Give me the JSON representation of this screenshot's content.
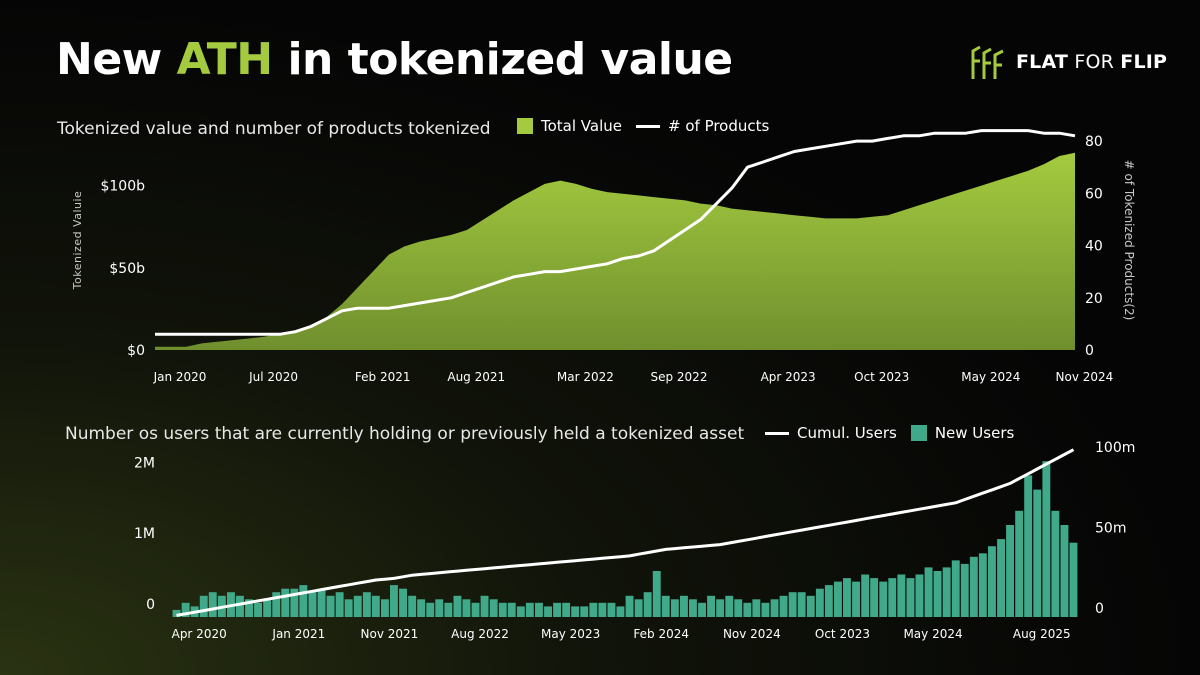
{
  "header": {
    "title_pre": "New ",
    "title_accent": "ATH",
    "title_post": " in tokenized value",
    "brand_bold": "FLAT",
    "brand_light": "FOR",
    "brand_bold2": "FLIP",
    "brand_icon": "fff-logo-icon"
  },
  "colors": {
    "accent": "#a4cb3f",
    "area_fill": "#8db43a",
    "line": "#ffffff",
    "bars": "#3fa98a",
    "text": "#ffffff",
    "muted": "#c8c8c8"
  },
  "top_legend": {
    "area_label": "Total Value",
    "line_label": "# of Products"
  },
  "bottom_legend": {
    "line_label": "Cumul. Users",
    "bar_label": "New Users"
  },
  "chart_data": [
    {
      "type": "area",
      "title": "Tokenized value and number of products tokenized",
      "ylabel": "Tokenized Valuie",
      "y2label": "# of Tokenized Products(2)",
      "ylim": [
        0,
        135
      ],
      "y2lim": [
        0,
        85
      ],
      "yticks": [
        {
          "value": 0,
          "label": "$0"
        },
        {
          "value": 50,
          "label": "$50b"
        },
        {
          "value": 100,
          "label": "$100b"
        }
      ],
      "y2ticks": [
        {
          "value": 0,
          "label": "0"
        },
        {
          "value": 20,
          "label": "20"
        },
        {
          "value": 40,
          "label": "40"
        },
        {
          "value": 60,
          "label": "60"
        },
        {
          "value": 80,
          "label": "80"
        }
      ],
      "xticks": [
        {
          "index": 0,
          "label": "Jan 2020"
        },
        {
          "index": 6,
          "label": "Jul 2020"
        },
        {
          "index": 13,
          "label": "Feb 2021"
        },
        {
          "index": 19,
          "label": "Aug 2021"
        },
        {
          "index": 26,
          "label": "Mar 2022"
        },
        {
          "index": 32,
          "label": "Sep 2022"
        },
        {
          "index": 39,
          "label": "Apr 2023"
        },
        {
          "index": 45,
          "label": "Oct 2023"
        },
        {
          "index": 52,
          "label": "May 2024"
        },
        {
          "index": 58,
          "label": "Nov 2024"
        }
      ],
      "n_points": 60,
      "series": [
        {
          "name": "Total Value",
          "kind": "area",
          "axis": "left",
          "values": [
            2,
            2,
            2,
            4,
            5,
            6,
            7,
            8,
            10,
            12,
            15,
            20,
            28,
            38,
            48,
            58,
            63,
            66,
            68,
            70,
            73,
            79,
            85,
            91,
            96,
            101,
            103,
            101,
            98,
            96,
            95,
            94,
            93,
            92,
            91,
            89,
            88,
            86,
            85,
            84,
            83,
            82,
            81,
            80,
            80,
            80,
            81,
            82,
            85,
            88,
            91,
            94,
            97,
            100,
            103,
            106,
            109,
            113,
            118,
            120
          ]
        },
        {
          "name": "# of Products",
          "kind": "line",
          "axis": "right",
          "values": [
            6,
            6,
            6,
            6,
            6,
            6,
            6,
            6,
            6,
            7,
            9,
            12,
            15,
            16,
            16,
            16,
            17,
            18,
            19,
            20,
            22,
            24,
            26,
            28,
            29,
            30,
            30,
            31,
            32,
            33,
            35,
            36,
            38,
            42,
            46,
            50,
            56,
            62,
            70,
            72,
            74,
            76,
            77,
            78,
            79,
            80,
            80,
            81,
            82,
            82,
            83,
            83,
            83,
            84,
            84,
            84,
            84,
            83,
            83,
            82
          ]
        }
      ]
    },
    {
      "type": "bar",
      "title": "Number os users that are currently holding or previously held a tokenized asset",
      "ylim": [
        0,
        2.5
      ],
      "y2lim": [
        0,
        110
      ],
      "yticks": [
        {
          "value": 0,
          "label": "0"
        },
        {
          "value": 1,
          "label": "1M"
        },
        {
          "value": 2,
          "label": "2M"
        }
      ],
      "y2ticks": [
        {
          "value": 0,
          "label": "0"
        },
        {
          "value": 50,
          "label": "50m"
        },
        {
          "value": 100,
          "label": "100m"
        }
      ],
      "xticks": [
        {
          "index": 3,
          "label": "Apr 2020"
        },
        {
          "index": 14,
          "label": "Jan 2021"
        },
        {
          "index": 24,
          "label": "Nov 2021"
        },
        {
          "index": 34,
          "label": "Aug 2022"
        },
        {
          "index": 44,
          "label": "May 2023"
        },
        {
          "index": 54,
          "label": "Feb 2024"
        },
        {
          "index": 64,
          "label": "Nov 2024"
        },
        {
          "index": 74,
          "label": "Oct 2023"
        },
        {
          "index": 84,
          "label": "May 2024"
        },
        {
          "index": 96,
          "label": "Aug 2025"
        }
      ],
      "n_points": 100,
      "series": [
        {
          "name": "New Users",
          "kind": "bar",
          "axis": "left",
          "values": [
            0.1,
            0.2,
            0.15,
            0.3,
            0.35,
            0.3,
            0.35,
            0.3,
            0.25,
            0.2,
            0.25,
            0.35,
            0.4,
            0.4,
            0.45,
            0.35,
            0.4,
            0.3,
            0.35,
            0.25,
            0.3,
            0.35,
            0.3,
            0.25,
            0.45,
            0.4,
            0.3,
            0.25,
            0.2,
            0.25,
            0.2,
            0.3,
            0.25,
            0.2,
            0.3,
            0.25,
            0.2,
            0.2,
            0.15,
            0.2,
            0.2,
            0.15,
            0.2,
            0.2,
            0.15,
            0.15,
            0.2,
            0.2,
            0.2,
            0.15,
            0.3,
            0.25,
            0.35,
            0.65,
            0.3,
            0.25,
            0.3,
            0.25,
            0.2,
            0.3,
            0.25,
            0.3,
            0.25,
            0.2,
            0.25,
            0.2,
            0.25,
            0.3,
            0.35,
            0.35,
            0.3,
            0.4,
            0.45,
            0.5,
            0.55,
            0.5,
            0.6,
            0.55,
            0.5,
            0.55,
            0.6,
            0.55,
            0.6,
            0.7,
            0.65,
            0.7,
            0.8,
            0.75,
            0.85,
            0.9,
            1.0,
            1.1,
            1.3,
            1.5,
            2.0,
            1.8,
            2.2,
            1.5,
            1.3,
            1.05
          ]
        },
        {
          "name": "Cumul. Users",
          "kind": "line",
          "axis": "right",
          "values": [
            1,
            2,
            3,
            4,
            5,
            6,
            7,
            8,
            9,
            10,
            11,
            12,
            13,
            14,
            15,
            16,
            17,
            18,
            19,
            20,
            21,
            22,
            23,
            23.5,
            24,
            25,
            26,
            26.5,
            27,
            27.5,
            28,
            28.5,
            29,
            29.5,
            30,
            30.5,
            31,
            31.5,
            32,
            32.5,
            33,
            33.5,
            34,
            34.5,
            35,
            35.5,
            36,
            36.5,
            37,
            37.5,
            38,
            39,
            40,
            41,
            42,
            42.5,
            43,
            43.5,
            44,
            44.5,
            45,
            46,
            47,
            48,
            49,
            50,
            51,
            52,
            53,
            54,
            55,
            56,
            57,
            58,
            59,
            60,
            61,
            62,
            63,
            64,
            65,
            66,
            67,
            68,
            69,
            70,
            71,
            73,
            75,
            77,
            79,
            81,
            83,
            86,
            89,
            92,
            95,
            98,
            101,
            104
          ]
        }
      ]
    }
  ]
}
